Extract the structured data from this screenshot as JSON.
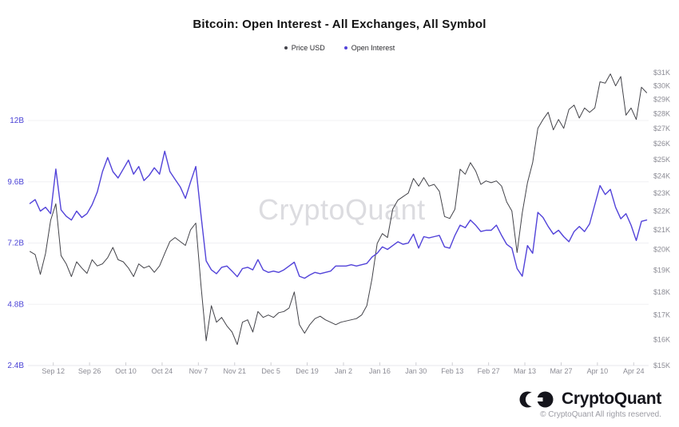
{
  "title": "Bitcoin: Open Interest - All Exchanges, All Symbol",
  "watermark": "CryptoQuant",
  "footer": {
    "brand": "CryptoQuant",
    "copyright": "© CryptoQuant All rights reserved."
  },
  "chart_data": {
    "type": "line",
    "title": "Bitcoin: Open Interest - All Exchanges, All Symbol",
    "legend_position": "top",
    "grid": "horizontal",
    "x_start_date": "2022-09-03",
    "x_step_days": 2,
    "x_tick_labels": [
      "Sep 12",
      "Sep 26",
      "Oct 10",
      "Oct 24",
      "Nov 7",
      "Nov 21",
      "Dec 5",
      "Dec 19",
      "Jan 2",
      "Jan 16",
      "Jan 30",
      "Feb 13",
      "Feb 27",
      "Mar 13",
      "Mar 27",
      "Apr 10",
      "Apr 24"
    ],
    "x_tick_first_offset_days": 9,
    "x_tick_interval_days": 14,
    "left_axis": {
      "title": "Open Interest",
      "scale": "linear",
      "unit": "B USD",
      "ticks": [
        "2.4B",
        "4.8B",
        "7.2B",
        "9.6B",
        "12B"
      ],
      "tick_values": [
        2.4,
        4.8,
        7.2,
        9.6,
        12
      ],
      "range": [
        2.4,
        12
      ],
      "color": "#4b43d6"
    },
    "right_axis": {
      "title": "Price USD",
      "scale": "log",
      "unit": "USD",
      "ticks": [
        "$15K",
        "$16K",
        "$17K",
        "$18K",
        "$19K",
        "$20K",
        "$21K",
        "$22K",
        "$23K",
        "$24K",
        "$25K",
        "$26K",
        "$27K",
        "$28K",
        "$29K",
        "$30K",
        "$31K"
      ],
      "tick_values": [
        15000,
        16000,
        17000,
        18000,
        19000,
        20000,
        21000,
        22000,
        23000,
        24000,
        25000,
        26000,
        27000,
        28000,
        29000,
        30000,
        31000
      ],
      "range": [
        15000,
        31000
      ],
      "color": "#8b8b94"
    },
    "series": [
      {
        "name": "Price USD",
        "axis": "right",
        "color": "#434349",
        "unit": "USD",
        "values": [
          19900,
          19750,
          18800,
          19800,
          21500,
          22400,
          19700,
          19300,
          18700,
          19400,
          19100,
          18850,
          19500,
          19200,
          19300,
          19600,
          20100,
          19500,
          19400,
          19100,
          18700,
          19300,
          19100,
          19200,
          18900,
          19200,
          19800,
          20400,
          20600,
          20400,
          20200,
          21000,
          21350,
          18300,
          15950,
          17400,
          16700,
          16900,
          16550,
          16300,
          15800,
          16700,
          16800,
          16300,
          17150,
          16900,
          17000,
          16900,
          17100,
          17150,
          17300,
          18000,
          16600,
          16250,
          16600,
          16850,
          16950,
          16800,
          16700,
          16600,
          16700,
          16750,
          16800,
          16850,
          17000,
          17400,
          18600,
          20300,
          20800,
          20600,
          22100,
          22600,
          22800,
          23000,
          23850,
          23400,
          23900,
          23400,
          23500,
          23100,
          21700,
          21600,
          22100,
          24400,
          24100,
          24800,
          24300,
          23500,
          23700,
          23600,
          23700,
          23400,
          22500,
          22000,
          19850,
          21900,
          23600,
          24800,
          27000,
          27600,
          28100,
          26900,
          27600,
          27000,
          28300,
          28600,
          27700,
          28400,
          28100,
          28400,
          30300,
          30200,
          30900,
          30000,
          30700,
          27900,
          28400,
          27600,
          29900,
          29500
        ]
      },
      {
        "name": "Open Interest",
        "axis": "left",
        "color": "#5243d9",
        "unit": "B USD",
        "values": [
          8.75,
          8.9,
          8.45,
          8.6,
          8.35,
          10.1,
          8.5,
          8.25,
          8.1,
          8.45,
          8.2,
          8.35,
          8.7,
          9.2,
          10.0,
          10.55,
          10.0,
          9.75,
          10.1,
          10.45,
          9.9,
          10.2,
          9.65,
          9.85,
          10.15,
          9.9,
          10.8,
          10.0,
          9.7,
          9.4,
          8.95,
          9.6,
          10.2,
          8.3,
          6.5,
          6.15,
          6.0,
          6.25,
          6.3,
          6.1,
          5.88,
          6.2,
          6.25,
          6.15,
          6.55,
          6.15,
          6.05,
          6.1,
          6.05,
          6.15,
          6.3,
          6.45,
          5.9,
          5.82,
          5.95,
          6.05,
          6.0,
          6.05,
          6.1,
          6.3,
          6.3,
          6.3,
          6.35,
          6.3,
          6.35,
          6.4,
          6.65,
          6.8,
          7.05,
          6.95,
          7.1,
          7.25,
          7.15,
          7.2,
          7.55,
          7.0,
          7.45,
          7.4,
          7.45,
          7.5,
          7.05,
          7.0,
          7.5,
          7.9,
          7.8,
          8.1,
          7.9,
          7.65,
          7.7,
          7.7,
          7.9,
          7.5,
          7.15,
          7.0,
          6.2,
          5.9,
          7.1,
          6.8,
          8.4,
          8.2,
          7.85,
          7.55,
          7.7,
          7.45,
          7.25,
          7.65,
          7.85,
          7.65,
          7.95,
          8.7,
          9.45,
          9.1,
          9.3,
          8.6,
          8.15,
          8.35,
          7.9,
          7.3,
          8.05,
          8.1
        ]
      }
    ]
  }
}
